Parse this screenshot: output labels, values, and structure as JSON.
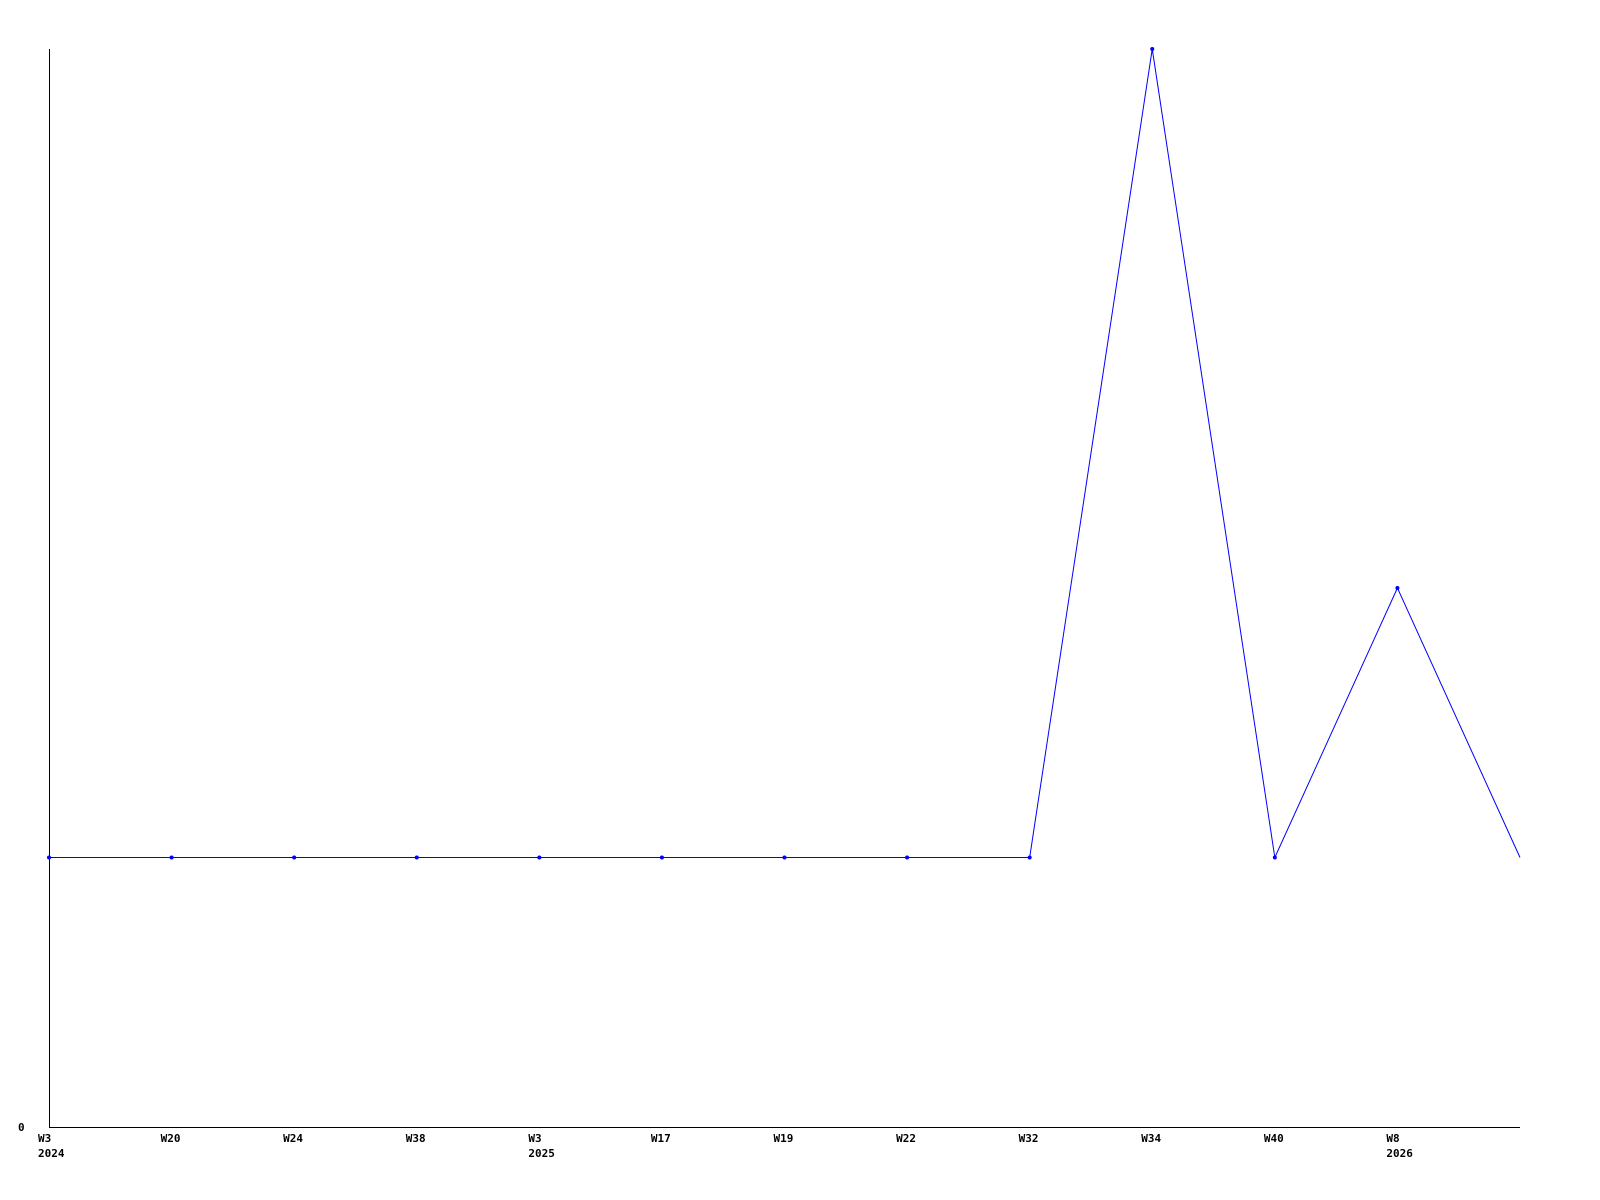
{
  "chart_data": {
    "type": "line",
    "title": "",
    "xlabel": "",
    "ylabel": "",
    "categories": [
      {
        "week": "W3",
        "year": "2024"
      },
      {
        "week": "W20",
        "year": ""
      },
      {
        "week": "W24",
        "year": ""
      },
      {
        "week": "W38",
        "year": ""
      },
      {
        "week": "W3",
        "year": "2025"
      },
      {
        "week": "W17",
        "year": ""
      },
      {
        "week": "W19",
        "year": ""
      },
      {
        "week": "W22",
        "year": ""
      },
      {
        "week": "W32",
        "year": ""
      },
      {
        "week": "W34",
        "year": ""
      },
      {
        "week": "W40",
        "year": ""
      },
      {
        "week": "W8",
        "year": "2026"
      },
      {
        "week": "",
        "year": ""
      }
    ],
    "series": [
      {
        "values": [
          1,
          1,
          1,
          1,
          1,
          1,
          1,
          1,
          1,
          4,
          1,
          2,
          1
        ],
        "color": "#0000ff"
      }
    ],
    "ylim": [
      0,
      4
    ],
    "y_tick_labels": [
      "0"
    ],
    "grid": false,
    "markers_hidden_on_last_point": true
  }
}
